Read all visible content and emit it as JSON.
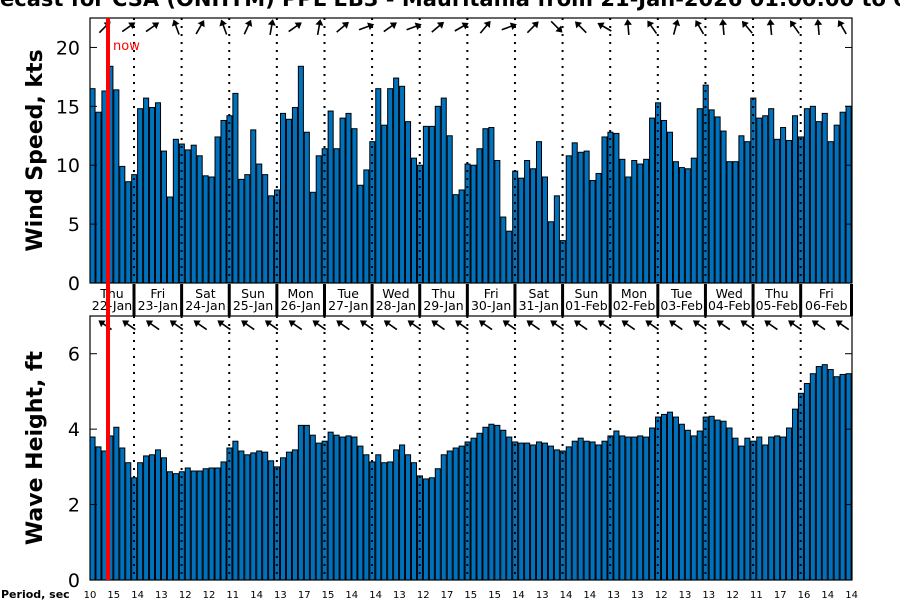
{
  "title": "ecast for CSA (ONHYM) PPL EB3  - Mauritania from 21-Jan-2026 01:00:00 to 0",
  "now_label": "now",
  "colors": {
    "bar": "#0072BD",
    "now_line": "#FF0000"
  },
  "chart_data": [
    {
      "type": "bar",
      "title": "Wind Speed",
      "ylabel": "Wind Speed, kts",
      "ylim": [
        0,
        22.5
      ],
      "yticks": [
        0,
        5,
        10,
        15,
        20
      ],
      "interval_hours": 3,
      "values": [
        16.5,
        14.5,
        16.3,
        18.4,
        16.4,
        9.9,
        8.6,
        9.2,
        14.8,
        15.7,
        14.9,
        15.3,
        11.2,
        7.3,
        12.2,
        11.8,
        11.3,
        11.7,
        10.8,
        9.1,
        9.0,
        12.4,
        13.8,
        14.2,
        16.1,
        8.8,
        9.2,
        13.0,
        10.1,
        9.2,
        7.4,
        7.9,
        14.4,
        13.9,
        14.9,
        18.4,
        12.8,
        7.7,
        10.8,
        11.4,
        14.6,
        11.4,
        14.0,
        14.4,
        13.1,
        8.3,
        9.6,
        12.0,
        16.5,
        13.4,
        16.5,
        17.4,
        16.7,
        13.7,
        10.6,
        10.0,
        13.3,
        13.3,
        15.0,
        15.7,
        12.5,
        7.5,
        7.9,
        10.1,
        10.0,
        11.4,
        13.1,
        13.2,
        10.4,
        5.6,
        4.4,
        9.5,
        8.9,
        10.4,
        9.7,
        12.0,
        9.0,
        5.2,
        7.4,
        3.6,
        10.8,
        11.9,
        11.1,
        11.2,
        8.7,
        9.3,
        12.4,
        12.8,
        12.7,
        10.5,
        9.0,
        10.4,
        10.1,
        10.5,
        14.0,
        15.3,
        13.8,
        12.8,
        10.3,
        9.8,
        9.7,
        10.6,
        14.8,
        16.8,
        14.7,
        14.1,
        12.9,
        10.3,
        10.3,
        12.5,
        12.0,
        15.7,
        14.0,
        14.2,
        14.8,
        12.2,
        13.2,
        12.1,
        14.2,
        12.4,
        14.8,
        15.0,
        13.7,
        14.4,
        12.0,
        13.4,
        14.5,
        15.0
      ],
      "direction_arrows_deg": [
        225,
        235,
        235,
        160,
        210,
        160,
        205,
        190,
        235,
        190,
        230,
        250,
        235,
        250,
        230,
        240,
        220,
        250,
        225,
        315,
        135,
        120,
        175,
        145,
        195,
        150,
        175,
        140,
        175,
        145,
        175,
        150
      ]
    },
    {
      "type": "bar",
      "title": "Wave Height",
      "ylabel": "Wave Height, ft",
      "ylim": [
        0,
        7
      ],
      "yticks": [
        0,
        2,
        4,
        6
      ],
      "interval_hours": 3,
      "values": [
        3.79,
        3.53,
        3.42,
        3.82,
        4.05,
        3.5,
        3.11,
        2.71,
        3.11,
        3.29,
        3.32,
        3.45,
        3.24,
        2.87,
        2.82,
        2.87,
        2.97,
        2.89,
        2.89,
        2.95,
        2.97,
        2.97,
        3.13,
        3.5,
        3.68,
        3.42,
        3.32,
        3.37,
        3.42,
        3.39,
        3.16,
        3.0,
        3.24,
        3.39,
        3.45,
        4.1,
        4.1,
        3.84,
        3.63,
        3.68,
        3.92,
        3.84,
        3.79,
        3.82,
        3.79,
        3.55,
        3.32,
        3.13,
        3.32,
        3.11,
        3.13,
        3.45,
        3.58,
        3.32,
        3.11,
        2.76,
        2.68,
        2.71,
        2.95,
        3.32,
        3.42,
        3.5,
        3.55,
        3.66,
        3.76,
        3.89,
        4.05,
        4.13,
        4.1,
        3.97,
        3.79,
        3.66,
        3.63,
        3.63,
        3.58,
        3.66,
        3.63,
        3.55,
        3.45,
        3.42,
        3.53,
        3.68,
        3.76,
        3.68,
        3.66,
        3.58,
        3.68,
        3.82,
        3.95,
        3.82,
        3.79,
        3.79,
        3.82,
        3.79,
        4.03,
        4.32,
        4.39,
        4.45,
        4.32,
        4.13,
        3.97,
        3.82,
        3.95,
        4.32,
        4.34,
        4.24,
        4.21,
        4.03,
        3.76,
        3.55,
        3.76,
        3.68,
        3.79,
        3.58,
        3.79,
        3.82,
        3.79,
        4.03,
        4.53,
        4.95,
        5.21,
        5.47,
        5.66,
        5.71,
        5.58,
        5.39,
        5.45,
        5.47
      ],
      "direction_arrows_deg": [
        125,
        125,
        125,
        125,
        125,
        125,
        125,
        125,
        125,
        125,
        125,
        125,
        125,
        125,
        125,
        125,
        125,
        125,
        125,
        125,
        125,
        125,
        125,
        125,
        125,
        125,
        125,
        125,
        125,
        125,
        125,
        125
      ]
    }
  ],
  "days": [
    {
      "day": "Thu",
      "date": "22-Jan"
    },
    {
      "day": "Fri",
      "date": "23-Jan"
    },
    {
      "day": "Sat",
      "date": "24-Jan"
    },
    {
      "day": "Sun",
      "date": "25-Jan"
    },
    {
      "day": "Mon",
      "date": "26-Jan"
    },
    {
      "day": "Tue",
      "date": "27-Jan"
    },
    {
      "day": "Wed",
      "date": "28-Jan"
    },
    {
      "day": "Thu",
      "date": "29-Jan"
    },
    {
      "day": "Fri",
      "date": "30-Jan"
    },
    {
      "day": "Sat",
      "date": "31-Jan"
    },
    {
      "day": "Sun",
      "date": "01-Feb"
    },
    {
      "day": "Mon",
      "date": "02-Feb"
    },
    {
      "day": "Tue",
      "date": "03-Feb"
    },
    {
      "day": "Wed",
      "date": "04-Feb"
    },
    {
      "day": "Thu",
      "date": "05-Feb"
    },
    {
      "day": "Fri",
      "date": "06-Feb"
    }
  ],
  "period": {
    "label": "Period, sec",
    "values": [
      10,
      15,
      14,
      13,
      12,
      12,
      11,
      14,
      13,
      17,
      15,
      14,
      14,
      13,
      12,
      17,
      15,
      15,
      14,
      13,
      14,
      14,
      13,
      13,
      12,
      13,
      13,
      12,
      11,
      17,
      16,
      14,
      14
    ]
  }
}
